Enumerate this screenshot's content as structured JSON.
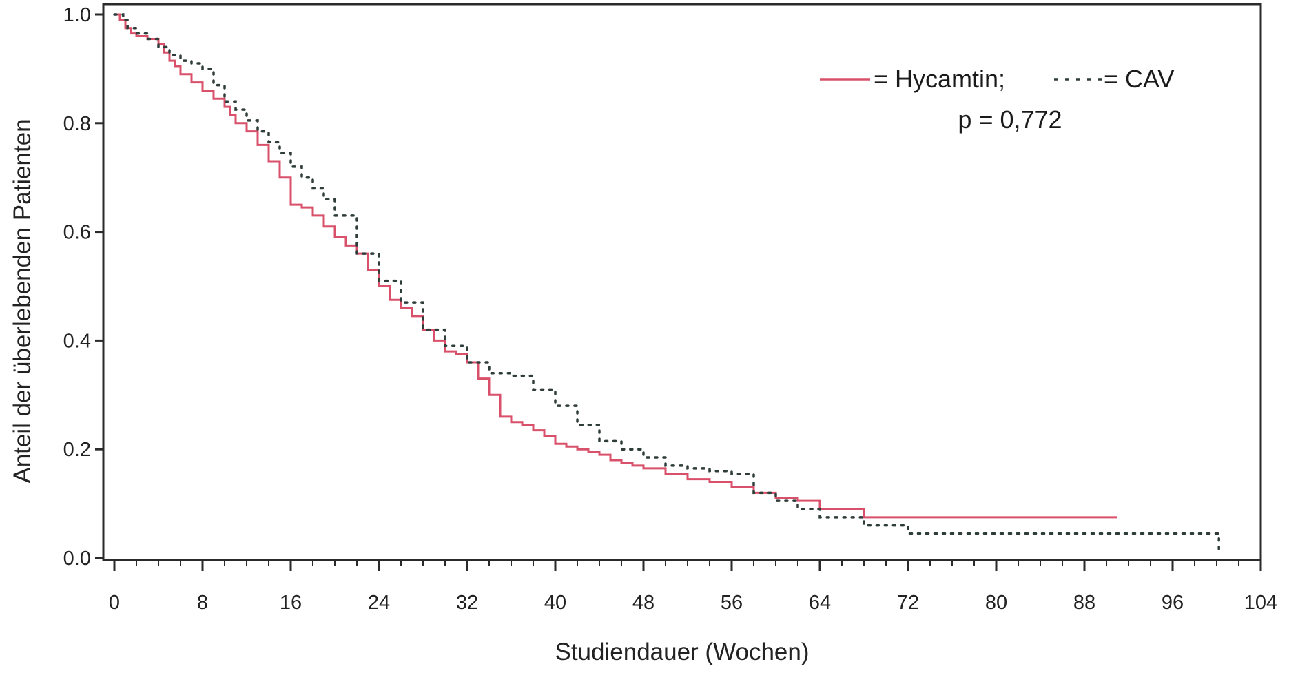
{
  "chart_data": {
    "type": "line",
    "xlabel": "Studiendauer (Wochen)",
    "ylabel": "Anteil der überlebenden Patienten",
    "xlim": [
      -1,
      106
    ],
    "ylim": [
      0,
      1.0
    ],
    "x_ticks": [
      0,
      8,
      16,
      24,
      32,
      40,
      48,
      56,
      64,
      72,
      80,
      88,
      96,
      104
    ],
    "x_tick_labels": [
      "0",
      "8",
      "16",
      "24",
      "32",
      "40",
      "48",
      "56",
      "64",
      "72",
      "80",
      "88",
      "96",
      "104"
    ],
    "y_ticks": [
      0.0,
      0.2,
      0.4,
      0.6,
      0.8,
      1.0
    ],
    "y_tick_labels": [
      "0.0",
      "0.2",
      "0.4",
      "0.6",
      "0.8",
      "1.0"
    ],
    "grid": false,
    "legend_placement": "top-right",
    "legend": {
      "line1": "= Hycamtin; ",
      "line1_end": " = CAV",
      "line2": "p = 0,772"
    },
    "series": [
      {
        "name": "Hycamtin",
        "style": "solid",
        "color": "#d9506a",
        "step": true,
        "x": [
          0,
          0.5,
          1,
          1.5,
          2,
          3,
          4,
          4.5,
          5,
          5.5,
          6,
          7,
          8,
          9,
          10,
          10.5,
          11,
          12,
          13,
          14,
          15,
          16,
          17,
          18,
          19,
          20,
          21,
          22,
          23,
          24,
          25,
          26,
          27,
          28,
          29,
          30,
          31,
          32,
          33,
          34,
          35,
          36,
          37,
          38,
          39,
          40,
          41,
          42,
          43,
          44,
          45,
          46,
          47,
          48,
          50,
          52,
          54,
          56,
          58,
          60,
          62,
          64,
          68,
          72,
          80,
          88,
          91
        ],
        "y": [
          1.0,
          0.99,
          0.975,
          0.965,
          0.96,
          0.955,
          0.945,
          0.93,
          0.915,
          0.905,
          0.89,
          0.875,
          0.86,
          0.845,
          0.83,
          0.815,
          0.8,
          0.785,
          0.76,
          0.73,
          0.7,
          0.65,
          0.645,
          0.63,
          0.61,
          0.59,
          0.575,
          0.56,
          0.53,
          0.5,
          0.475,
          0.46,
          0.445,
          0.42,
          0.4,
          0.38,
          0.375,
          0.36,
          0.33,
          0.3,
          0.26,
          0.25,
          0.245,
          0.235,
          0.225,
          0.21,
          0.205,
          0.2,
          0.195,
          0.19,
          0.18,
          0.175,
          0.17,
          0.165,
          0.155,
          0.145,
          0.14,
          0.13,
          0.12,
          0.11,
          0.105,
          0.09,
          0.075,
          0.075,
          0.075,
          0.075,
          0.075
        ]
      },
      {
        "name": "CAV",
        "style": "dotted",
        "color": "#2e3d3a",
        "step": true,
        "x": [
          0,
          0.8,
          1.2,
          2,
          3,
          4,
          5,
          6,
          7,
          8,
          9,
          10,
          11,
          12,
          13,
          14,
          15,
          16,
          17,
          18,
          19,
          20,
          22,
          24,
          26,
          28,
          30,
          32,
          34,
          36,
          38,
          40,
          42,
          44,
          46,
          48,
          50,
          52,
          54,
          56,
          58,
          60,
          62,
          64,
          68,
          72,
          80,
          88,
          96,
          100,
          100.2
        ],
        "y": [
          1.0,
          0.99,
          0.975,
          0.965,
          0.955,
          0.94,
          0.925,
          0.915,
          0.91,
          0.9,
          0.87,
          0.84,
          0.825,
          0.805,
          0.785,
          0.765,
          0.745,
          0.72,
          0.7,
          0.68,
          0.66,
          0.63,
          0.56,
          0.51,
          0.47,
          0.42,
          0.39,
          0.36,
          0.34,
          0.335,
          0.31,
          0.28,
          0.245,
          0.215,
          0.2,
          0.185,
          0.17,
          0.165,
          0.16,
          0.155,
          0.12,
          0.105,
          0.09,
          0.075,
          0.06,
          0.045,
          0.045,
          0.045,
          0.045,
          0.045,
          0.01
        ]
      }
    ]
  }
}
